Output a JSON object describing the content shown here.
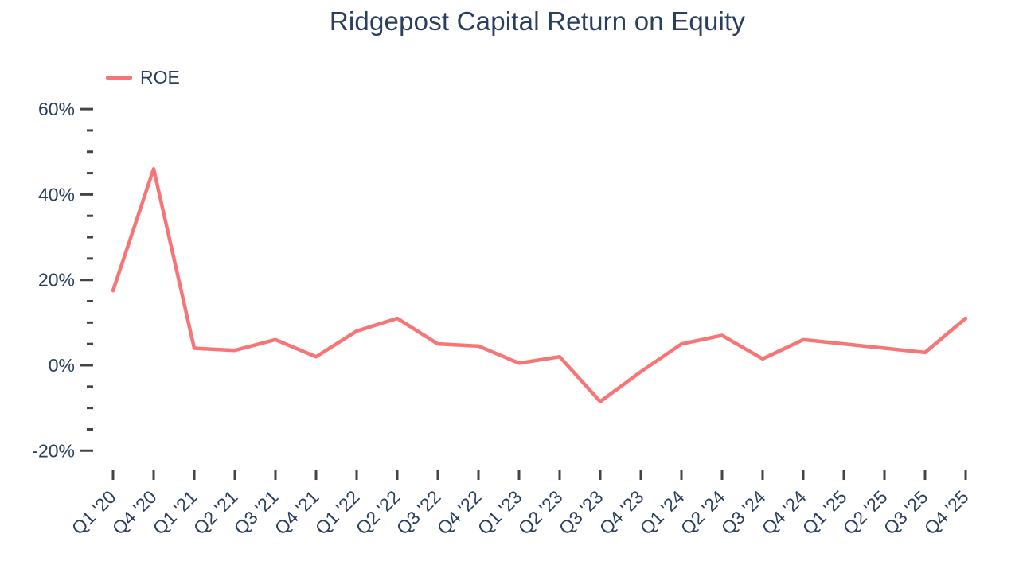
{
  "page": {
    "background": "#ffffff"
  },
  "chart_data": {
    "type": "line",
    "title": "Ridgepost Capital Return on Equity",
    "xlabel": "",
    "ylabel": "",
    "grid": false,
    "legend_position": "top-left",
    "categories": [
      "Q1 '20",
      "Q4 '20",
      "Q1 '21",
      "Q2 '21",
      "Q3 '21",
      "Q4 '21",
      "Q1 '22",
      "Q2 '22",
      "Q3 '22",
      "Q4 '22",
      "Q1 '23",
      "Q2 '23",
      "Q3 '23",
      "Q4 '23",
      "Q1 '24",
      "Q2 '24",
      "Q3 '24",
      "Q4 '24",
      "Q1 '25",
      "Q2 '25",
      "Q3 '25",
      "Q4 '25"
    ],
    "series": [
      {
        "name": "ROE",
        "color": "#F87575",
        "values": [
          17.5,
          46,
          4,
          3.5,
          6,
          2,
          8,
          11,
          5,
          4.5,
          0.5,
          2,
          -8.5,
          -1.5,
          5,
          7,
          1.5,
          6,
          5,
          4,
          3,
          11
        ]
      }
    ],
    "y_axis": {
      "unit": "%",
      "range": [
        -22,
        62
      ],
      "major_ticks": [
        {
          "value": 60,
          "label": "60%"
        },
        {
          "value": 40,
          "label": "40%"
        },
        {
          "value": 20,
          "label": "20%"
        },
        {
          "value": 0,
          "label": "0%"
        },
        {
          "value": -20,
          "label": "-20%"
        }
      ],
      "minor_ticks": [
        55,
        50,
        45,
        35,
        30,
        25,
        15,
        10,
        5,
        -5,
        -10,
        -15
      ]
    },
    "colors": {
      "text": "#2a3f5f",
      "tick": "#444444",
      "background": "#ffffff"
    }
  }
}
